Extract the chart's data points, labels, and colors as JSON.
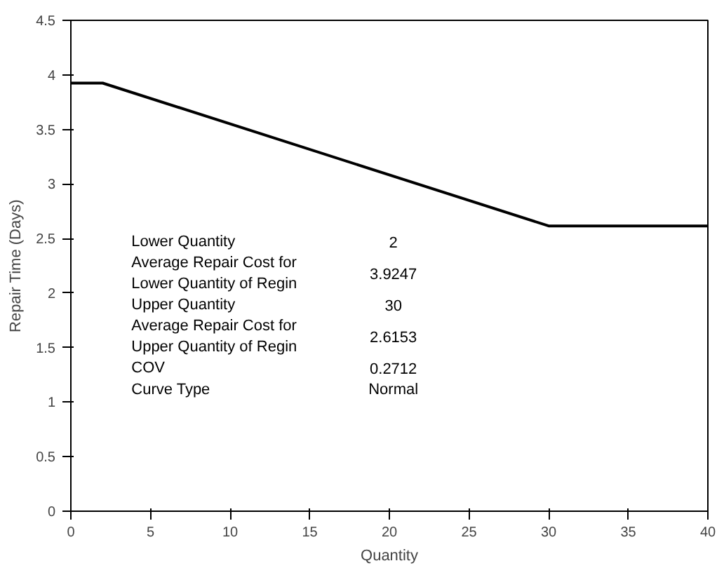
{
  "chart_data": {
    "type": "line",
    "xlabel": "Quantity",
    "ylabel": "Repair Time (Days)",
    "x": [
      0,
      2,
      30,
      40
    ],
    "series": [
      {
        "color": "#000000",
        "values": [
          3.9247,
          3.9247,
          2.6153,
          2.6153
        ]
      }
    ],
    "xlim": [
      0,
      40
    ],
    "ylim": [
      0,
      4.5
    ],
    "xticks": [
      0,
      5,
      10,
      15,
      20,
      25,
      30,
      35,
      40
    ],
    "yticks": [
      0,
      0.5,
      1,
      1.5,
      2,
      2.5,
      3,
      3.5,
      4,
      4.5
    ],
    "grid": false,
    "marker": "none",
    "line_style": "solid",
    "annotations": [
      "Lower Quantity",
      "2",
      "Average Repair Cost for\nLower Quantity of Regin",
      "3.9247",
      "Upper Quantity",
      "30",
      "Average Repair Cost for\nUpper Quantity of Regin",
      "2.6153",
      "COV",
      "0.2712",
      "Curve Type",
      "Normal"
    ]
  }
}
